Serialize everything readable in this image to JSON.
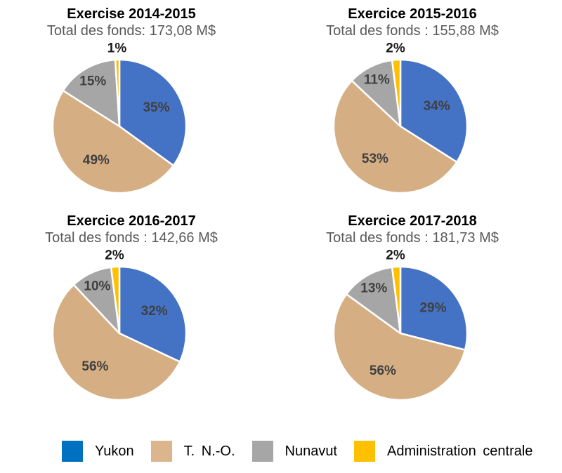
{
  "chart_data": [
    {
      "type": "pie",
      "title": "Exercise 2014-2015",
      "subtitle": "Total des fonds: 173,08 M$",
      "categories": [
        "Yukon",
        "T. N.-O.",
        "Nunavut",
        "Administration centrale"
      ],
      "values": [
        35,
        49,
        15,
        1
      ],
      "labels": [
        "35%",
        "49%",
        "15%",
        "1%"
      ],
      "colors": [
        "#4472C4",
        "#D6AE83",
        "#A6A6A6",
        "#FFC000"
      ],
      "start_angle_deg": 0,
      "direction": "clockwise"
    },
    {
      "type": "pie",
      "title": "Exercice 2015-2016",
      "subtitle": "Total des fonds : 155,88 M$",
      "categories": [
        "Yukon",
        "T. N.-O.",
        "Nunavut",
        "Administration centrale"
      ],
      "values": [
        34,
        53,
        11,
        2
      ],
      "labels": [
        "34%",
        "53%",
        "11%",
        "2%"
      ],
      "colors": [
        "#4472C4",
        "#D6AE83",
        "#A6A6A6",
        "#FFC000"
      ],
      "start_angle_deg": 0,
      "direction": "clockwise"
    },
    {
      "type": "pie",
      "title": "Exercice 2016-2017",
      "subtitle": "Total des fonds : 142,66 M$",
      "categories": [
        "Yukon",
        "T. N.-O.",
        "Nunavut",
        "Administration centrale"
      ],
      "values": [
        32,
        56,
        10,
        2
      ],
      "labels": [
        "32%",
        "56%",
        "10%",
        "2%"
      ],
      "colors": [
        "#4472C4",
        "#D6AE83",
        "#A6A6A6",
        "#FFC000"
      ],
      "start_angle_deg": 0,
      "direction": "clockwise"
    },
    {
      "type": "pie",
      "title": "Exercice 2017-2018",
      "subtitle": "Total des fonds : 181,73 M$",
      "categories": [
        "Yukon",
        "T. N.-O.",
        "Nunavut",
        "Administration centrale"
      ],
      "values": [
        29,
        56,
        13,
        2
      ],
      "labels": [
        "29%",
        "56%",
        "13%",
        "2%"
      ],
      "colors": [
        "#4472C4",
        "#D6AE83",
        "#A6A6A6",
        "#FFC000"
      ],
      "start_angle_deg": 0,
      "direction": "clockwise"
    }
  ],
  "legend": {
    "items": [
      {
        "label": "Yukon",
        "color": "#0070C0"
      },
      {
        "label": "T. N.-O.",
        "color": "#DCB58D"
      },
      {
        "label": "Nunavut",
        "color": "#A6A6A6"
      },
      {
        "label": "Administration centrale",
        "color": "#FFC000"
      }
    ]
  },
  "style": {
    "inside_label_color": "#404040",
    "outside_label_color": "#1a1a1a",
    "title_color": "#000000",
    "subtitle_color": "#595959",
    "slice_border_color": "#ffffff"
  }
}
